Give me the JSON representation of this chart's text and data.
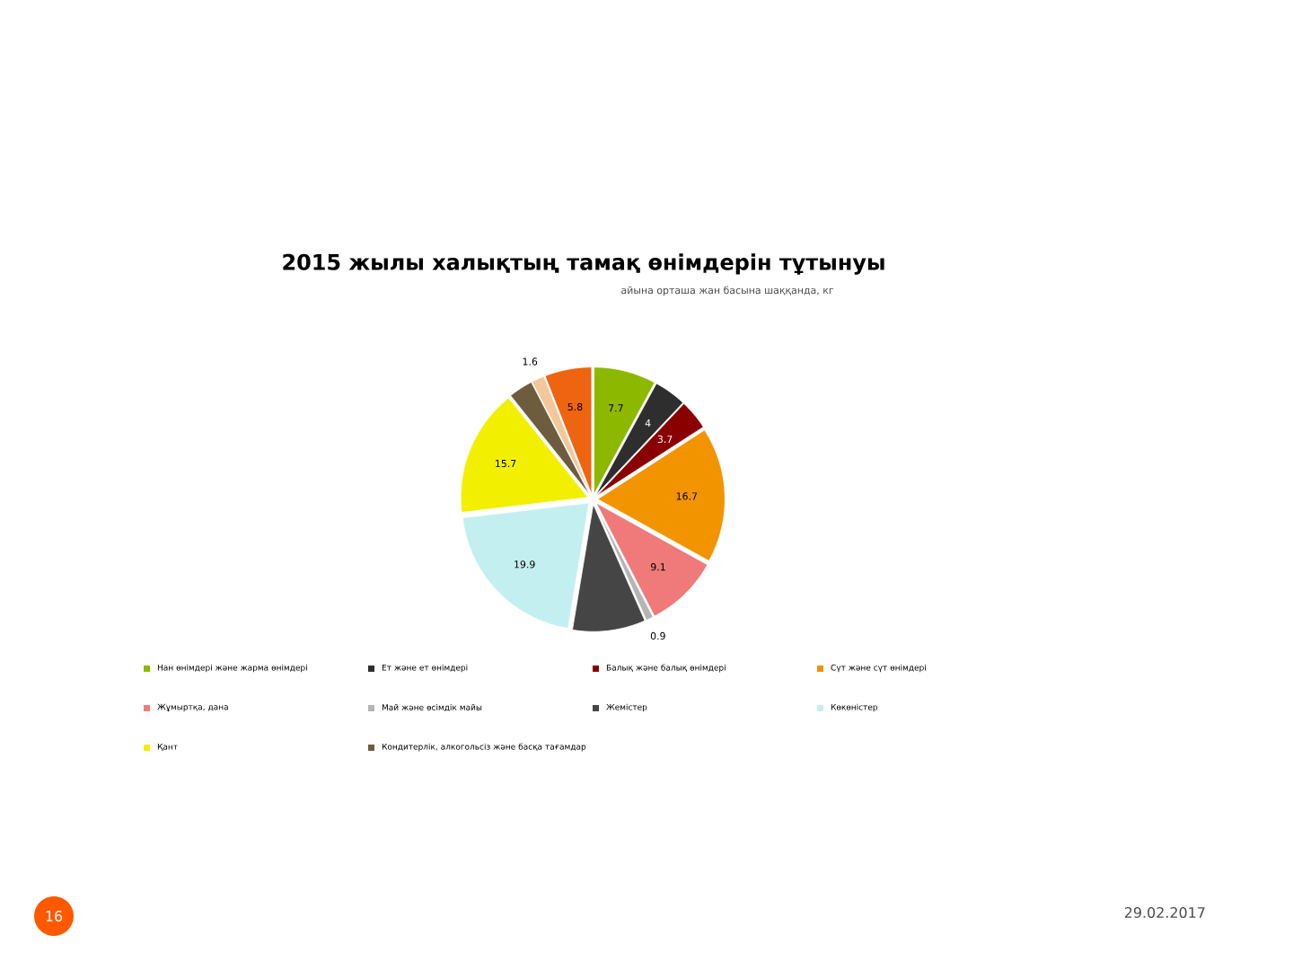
{
  "chart_data": {
    "type": "pie",
    "title": "2015 жылы халықтың тамақ өнімдерін тұтынуы",
    "subtitle": "айына орташа жан басына шаққанда, кг",
    "categories": [
      "Нан өнімдері және жарма өнімдері",
      "Ет және ет өнімдері",
      "Балық және балық өнімдері",
      "Сүт және сүт өнімдері",
      "Жұмыртқа, дана",
      "Май және өсімдік майы",
      "Жемістер",
      "Көкөністер",
      "Қант",
      "Кондитерлік, алкогольсіз және басқа тағамдар",
      null,
      null
    ],
    "values": [
      7.7,
      4,
      3.7,
      16.7,
      9.1,
      0.9,
      9,
      19.9,
      15.7,
      3,
      1.6,
      5.8
    ],
    "value_labels": [
      "7.7",
      "4",
      "3.7",
      "16.7",
      "9.1",
      "0.9",
      null,
      "19.9",
      "15.7",
      null,
      "1.6",
      "5.8"
    ],
    "colors": [
      "#8cb800",
      "#2e2e2e",
      "#8a0000",
      "#f29400",
      "#f07a7a",
      "#b4b4b4",
      "#454545",
      "#c4eff0",
      "#f2f000",
      "#6e5c3e",
      "#f3c79c",
      "#ee6410"
    ],
    "legend": "bottom",
    "annotations": [
      "16",
      "29.02.2017"
    ]
  }
}
